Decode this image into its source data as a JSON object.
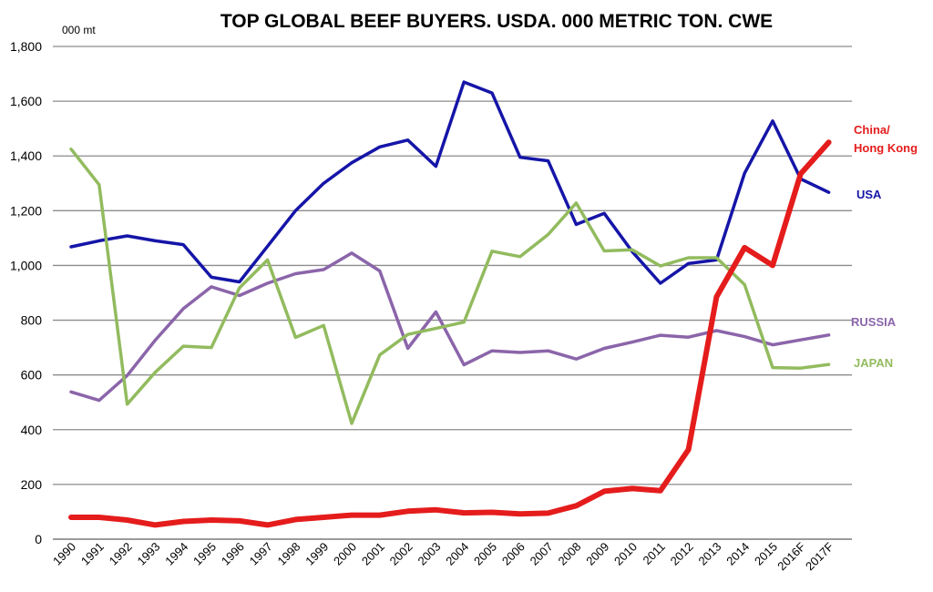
{
  "chart_data": {
    "type": "line",
    "title": "TOP GLOBAL BEEF BUYERS.  USDA.  000 METRIC TON. CWE",
    "unit_label": "000 mt",
    "ylim": [
      0,
      1800
    ],
    "yticks": [
      "0",
      "200",
      "400",
      "600",
      "800",
      "1,000",
      "1,200",
      "1,400",
      "1,600",
      "1,800"
    ],
    "ytick_values": [
      0,
      200,
      400,
      600,
      800,
      1000,
      1200,
      1400,
      1600,
      1800
    ],
    "grid": true,
    "categories": [
      "1990",
      "1991",
      "1992",
      "1993",
      "1994",
      "1995",
      "1996",
      "1997",
      "1998",
      "1999",
      "2000",
      "2001",
      "2002",
      "2003",
      "2004",
      "2005",
      "2006",
      "2007",
      "2008",
      "2009",
      "2010",
      "2011",
      "2012",
      "2013",
      "2014",
      "2015",
      "2016F",
      "2017F"
    ],
    "series": [
      {
        "name": "USA",
        "label_lines": [
          "USA"
        ],
        "color": "#1515a8",
        "width": 3.5,
        "values": [
          1068,
          1090,
          1108,
          1090,
          1076,
          957,
          940,
          1070,
          1200,
          1300,
          1375,
          1433,
          1458,
          1362,
          1670,
          1630,
          1395,
          1382,
          1150,
          1190,
          1050,
          935,
          1007,
          1020,
          1337,
          1528,
          1316,
          1267
        ]
      },
      {
        "name": "RUSSIA",
        "label_lines": [
          "RUSSIA"
        ],
        "color": "#8b65aa",
        "width": 3.5,
        "values": [
          538,
          507,
          598,
          727,
          842,
          922,
          890,
          935,
          970,
          985,
          1045,
          980,
          697,
          830,
          637,
          688,
          682,
          688,
          658,
          697,
          720,
          745,
          738,
          762,
          740,
          710,
          728,
          746
        ]
      },
      {
        "name": "JAPAN",
        "label_lines": [
          "JAPAN"
        ],
        "color": "#92bb5e",
        "width": 3.5,
        "values": [
          1425,
          1295,
          493,
          610,
          705,
          700,
          918,
          1020,
          737,
          781,
          423,
          673,
          748,
          770,
          793,
          1052,
          1032,
          1113,
          1228,
          1053,
          1057,
          998,
          1028,
          1028,
          930,
          627,
          625,
          638
        ]
      },
      {
        "name": "China/ Hong Kong",
        "label_lines": [
          "China/",
          "Hong Kong"
        ],
        "color": "#e51c1c",
        "width": 6,
        "values": [
          80,
          80,
          70,
          52,
          65,
          70,
          67,
          52,
          72,
          80,
          88,
          88,
          102,
          107,
          96,
          98,
          92,
          95,
          122,
          175,
          185,
          177,
          327,
          885,
          1065,
          1000,
          1335,
          1450
        ]
      }
    ]
  }
}
